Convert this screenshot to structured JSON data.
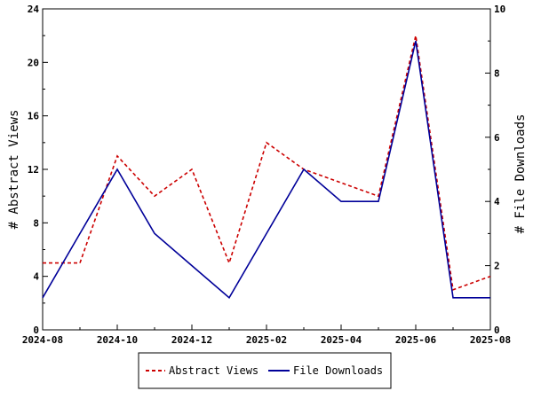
{
  "chart_data": {
    "type": "line",
    "title": "",
    "x": [
      "2024-08",
      "2024-09",
      "2024-10",
      "2024-11",
      "2024-12",
      "2025-01",
      "2025-02",
      "2025-03",
      "2025-04",
      "2025-05",
      "2025-06",
      "2025-07",
      "2025-08"
    ],
    "x_ticks": [
      "2024-08",
      "2024-10",
      "2024-12",
      "2025-02",
      "2025-04",
      "2025-06",
      "2025-08"
    ],
    "xlim": [
      "2024-08",
      "2025-08"
    ],
    "ylabel_left": "# Abstract Views",
    "ylim_left": [
      0,
      24
    ],
    "yticks_left": [
      "0",
      "4",
      "8",
      "12",
      "16",
      "20",
      "24"
    ],
    "ylabel_right": "# File Downloads",
    "ylim_right": [
      0,
      10
    ],
    "yticks_right": [
      "0",
      "2",
      "4",
      "6",
      "8",
      "10"
    ],
    "grid": false,
    "legend_position": "bottom-center",
    "series": [
      {
        "name": "Abstract Views",
        "axis": "left",
        "color": "#cc0000",
        "style": "dashed",
        "values": [
          5,
          5,
          13,
          10,
          12,
          5,
          14,
          12,
          11,
          10,
          22,
          3,
          4
        ]
      },
      {
        "name": "File Downloads",
        "axis": "right",
        "color": "#000099",
        "style": "solid",
        "values": [
          1,
          3,
          5,
          3,
          2,
          1,
          3,
          5,
          4,
          4,
          9,
          1,
          1
        ]
      }
    ]
  }
}
